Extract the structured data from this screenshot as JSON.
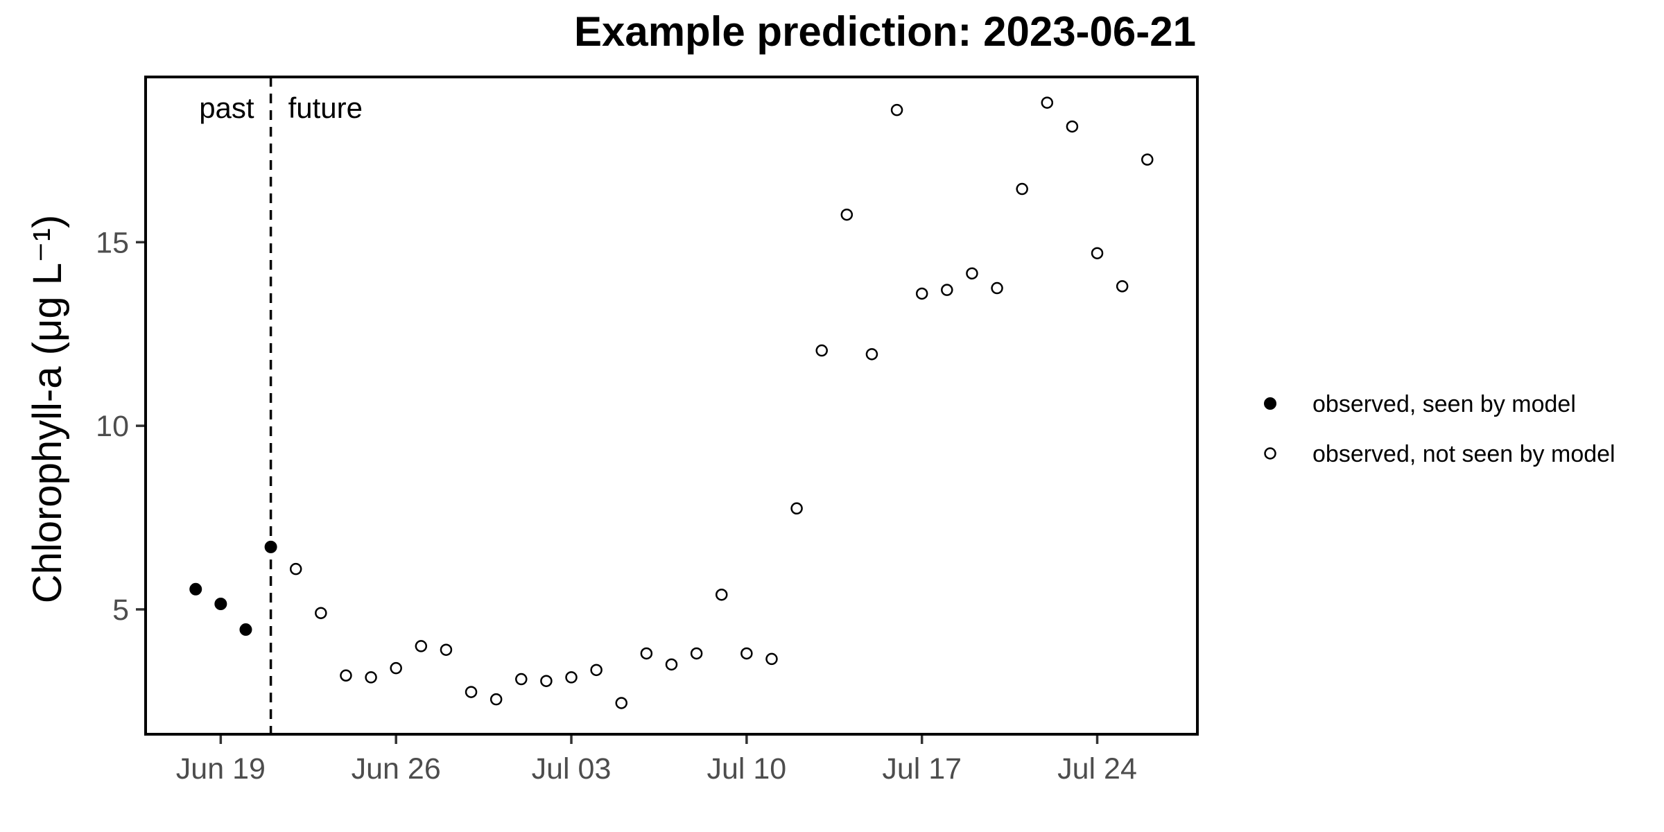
{
  "chart_data": {
    "type": "scatter",
    "title": "Example prediction: 2023-06-21",
    "xlabel": "",
    "ylabel": "Chlorophyll-a (μg L⁻¹)",
    "x_ticks": [
      {
        "date": "2023-06-19",
        "label": "Jun 19"
      },
      {
        "date": "2023-06-26",
        "label": "Jun 26"
      },
      {
        "date": "2023-07-03",
        "label": "Jul 03"
      },
      {
        "date": "2023-07-10",
        "label": "Jul 10"
      },
      {
        "date": "2023-07-17",
        "label": "Jul 17"
      },
      {
        "date": "2023-07-24",
        "label": "Jul 24"
      }
    ],
    "y_ticks": [
      5,
      10,
      15
    ],
    "xlim": [
      "2023-06-16",
      "2023-07-28"
    ],
    "ylim": [
      1.6,
      19.5
    ],
    "grid": false,
    "legend_position": "right",
    "reference_line": {
      "date": "2023-06-21",
      "style": "dashed",
      "left_label": "past",
      "right_label": "future"
    },
    "series": [
      {
        "name": "observed, seen by model",
        "marker": "filled-circle",
        "color": "#000000",
        "points": [
          {
            "x": "2023-06-18",
            "y": 5.55
          },
          {
            "x": "2023-06-19",
            "y": 5.15
          },
          {
            "x": "2023-06-20",
            "y": 4.45
          },
          {
            "x": "2023-06-21",
            "y": 6.7
          }
        ]
      },
      {
        "name": "observed, not seen by model",
        "marker": "open-circle",
        "color": "#000000",
        "points": [
          {
            "x": "2023-06-22",
            "y": 6.1
          },
          {
            "x": "2023-06-23",
            "y": 4.9
          },
          {
            "x": "2023-06-24",
            "y": 3.2
          },
          {
            "x": "2023-06-25",
            "y": 3.15
          },
          {
            "x": "2023-06-26",
            "y": 3.4
          },
          {
            "x": "2023-06-27",
            "y": 4.0
          },
          {
            "x": "2023-06-28",
            "y": 3.9
          },
          {
            "x": "2023-06-29",
            "y": 2.75
          },
          {
            "x": "2023-06-30",
            "y": 2.55
          },
          {
            "x": "2023-07-01",
            "y": 3.1
          },
          {
            "x": "2023-07-02",
            "y": 3.05
          },
          {
            "x": "2023-07-03",
            "y": 3.15
          },
          {
            "x": "2023-07-04",
            "y": 3.35
          },
          {
            "x": "2023-07-05",
            "y": 2.45
          },
          {
            "x": "2023-07-06",
            "y": 3.8
          },
          {
            "x": "2023-07-07",
            "y": 3.5
          },
          {
            "x": "2023-07-08",
            "y": 3.8
          },
          {
            "x": "2023-07-09",
            "y": 5.4
          },
          {
            "x": "2023-07-10",
            "y": 3.8
          },
          {
            "x": "2023-07-11",
            "y": 3.65
          },
          {
            "x": "2023-07-12",
            "y": 7.75
          },
          {
            "x": "2023-07-13",
            "y": 12.05
          },
          {
            "x": "2023-07-14",
            "y": 15.75
          },
          {
            "x": "2023-07-15",
            "y": 11.95
          },
          {
            "x": "2023-07-16",
            "y": 18.6
          },
          {
            "x": "2023-07-17",
            "y": 13.6
          },
          {
            "x": "2023-07-18",
            "y": 13.7
          },
          {
            "x": "2023-07-19",
            "y": 14.15
          },
          {
            "x": "2023-07-20",
            "y": 13.75
          },
          {
            "x": "2023-07-21",
            "y": 16.45
          },
          {
            "x": "2023-07-22",
            "y": 18.8
          },
          {
            "x": "2023-07-23",
            "y": 18.15
          },
          {
            "x": "2023-07-24",
            "y": 14.7
          },
          {
            "x": "2023-07-25",
            "y": 13.8
          },
          {
            "x": "2023-07-26",
            "y": 17.25
          }
        ]
      }
    ]
  }
}
